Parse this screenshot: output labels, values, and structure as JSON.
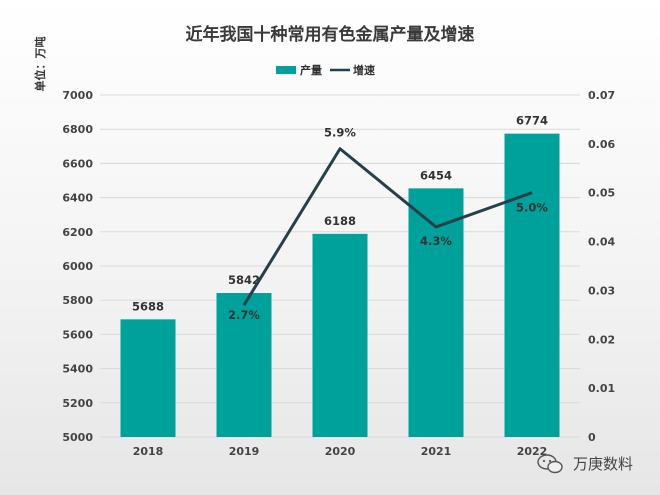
{
  "chart_data": {
    "type": "bar",
    "title": "近年我国十种常用有色金属产量及增速",
    "unit_label": "单位：万吨",
    "categories": [
      "2018",
      "2019",
      "2020",
      "2021",
      "2022"
    ],
    "series": [
      {
        "name": "产量",
        "type": "bar",
        "axis": "left",
        "values": [
          5688,
          5842,
          6188,
          6454,
          6774
        ]
      },
      {
        "name": "增速",
        "type": "line",
        "axis": "right",
        "values": [
          0.027,
          0.059,
          0.043,
          0.05
        ],
        "x": [
          "2019",
          "2020",
          "2021",
          "2022"
        ],
        "labels": [
          "2.7%",
          "5.9%",
          "4.3%",
          "5.0%"
        ]
      }
    ],
    "ylim": [
      5000,
      7000
    ],
    "yticks": [
      5000,
      5200,
      5400,
      5600,
      5800,
      6000,
      6200,
      6400,
      6600,
      6800,
      7000
    ],
    "y2lim": [
      0,
      0.07
    ],
    "y2ticks": [
      "0",
      "0.01",
      "0.02",
      "0.03",
      "0.04",
      "0.05",
      "0.06",
      "0.07"
    ],
    "grid": true,
    "legend_position": "top-center",
    "colors": {
      "bar": "#00a19a",
      "line": "#26404b"
    }
  },
  "watermark": {
    "text": "万庚数料",
    "icon": "wechat-icon"
  }
}
